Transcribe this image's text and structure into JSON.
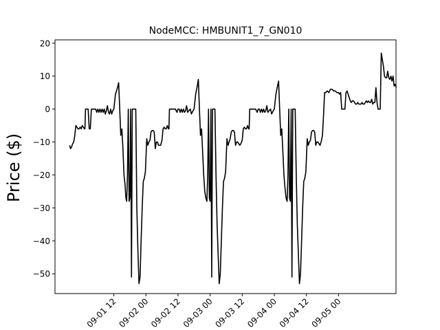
{
  "chart_data": {
    "type": "line",
    "title": "NodeMCC: HMBUNIT1_7_GN010",
    "xlabel": "",
    "ylabel": "Price ($)",
    "ylim": [
      -56,
      21
    ],
    "xlim_hours": [
      -10,
      117.5
    ],
    "grid": false,
    "line_color": "#000000",
    "y_ticks": [
      20,
      10,
      0,
      -10,
      -20,
      -30,
      -40,
      -50
    ],
    "x_ticks": [
      {
        "label": "09-01 12",
        "t": 12
      },
      {
        "label": "09-02 00",
        "t": 24
      },
      {
        "label": "09-02 12",
        "t": 36
      },
      {
        "label": "09-03 00",
        "t": 48
      },
      {
        "label": "09-03 12",
        "t": 60
      },
      {
        "label": "09-04 00",
        "t": 72
      },
      {
        "label": "09-04 12",
        "t": 84
      },
      {
        "label": "09-05 00",
        "t": 96
      }
    ],
    "series": [
      {
        "name": "",
        "points": [
          [
            -4.5,
            -11
          ],
          [
            -4.2,
            -12
          ],
          [
            -3.8,
            -11.5
          ],
          [
            -3.4,
            -10.5
          ],
          [
            -3,
            -10
          ],
          [
            -2.6,
            -8
          ],
          [
            -2.2,
            -5
          ],
          [
            -1.8,
            -5.5
          ],
          [
            -1.4,
            -6
          ],
          [
            -1,
            -6
          ],
          [
            -0.6,
            -5.5
          ],
          [
            -0.2,
            -6
          ],
          [
            0.2,
            -5
          ],
          [
            0.6,
            -5.5
          ],
          [
            1,
            -6
          ],
          [
            1.2,
            -6
          ],
          [
            1.4,
            0
          ],
          [
            2,
            0
          ],
          [
            2.4,
            0
          ],
          [
            2.8,
            -6
          ],
          [
            3.2,
            -6
          ],
          [
            3.6,
            0
          ],
          [
            4.4,
            0
          ],
          [
            5.2,
            0
          ],
          [
            5.6,
            -1
          ],
          [
            6,
            0
          ],
          [
            6.4,
            -1
          ],
          [
            6.8,
            0
          ],
          [
            7.2,
            -1
          ],
          [
            7.6,
            0
          ],
          [
            8,
            -1
          ],
          [
            8.4,
            0
          ],
          [
            8.8,
            -1.5
          ],
          [
            9.2,
            -0.5
          ],
          [
            9.6,
            1
          ],
          [
            10,
            -1
          ],
          [
            10.4,
            -1.5
          ],
          [
            10.8,
            0
          ],
          [
            11.2,
            -1.5
          ],
          [
            11.6,
            -0.5
          ],
          [
            12,
            0
          ],
          [
            12.6,
            4.5
          ],
          [
            13.2,
            6
          ],
          [
            13.8,
            8
          ],
          [
            14.2,
            0
          ],
          [
            14.6,
            -8
          ],
          [
            15,
            -6
          ],
          [
            15.4,
            -12
          ],
          [
            15.8,
            -20
          ],
          [
            16.2,
            -23
          ],
          [
            16.5,
            -27
          ],
          [
            16.8,
            -28
          ],
          [
            17.1,
            -20
          ],
          [
            17.4,
            0
          ],
          [
            17.7,
            -28
          ],
          [
            18,
            -27
          ],
          [
            18.3,
            0
          ],
          [
            18.6,
            -51
          ],
          [
            18.9,
            0
          ],
          [
            19.4,
            0
          ],
          [
            19.8,
            0
          ],
          [
            20.2,
            0
          ],
          [
            20.6,
            -30
          ],
          [
            21,
            -43
          ],
          [
            21.4,
            -53
          ],
          [
            21.8,
            -51
          ],
          [
            22.2,
            -40
          ],
          [
            22.6,
            -30
          ],
          [
            23,
            -22
          ],
          [
            23.4,
            -21
          ],
          [
            23.8,
            -19
          ],
          [
            24.3,
            -9
          ],
          [
            24.7,
            -11
          ],
          [
            25.1,
            -10
          ],
          [
            25.5,
            -9.5
          ],
          [
            25.9,
            -7
          ],
          [
            26.3,
            -6.5
          ],
          [
            26.7,
            -6.5
          ],
          [
            27.1,
            -7
          ],
          [
            27.5,
            -12
          ],
          [
            27.9,
            -10
          ],
          [
            28.3,
            -10
          ],
          [
            28.7,
            -11
          ],
          [
            29.1,
            -11
          ],
          [
            29.5,
            -11
          ],
          [
            30,
            -9.5
          ],
          [
            30.4,
            -6
          ],
          [
            30.8,
            -5.5
          ],
          [
            31.2,
            -6
          ],
          [
            31.6,
            -6
          ],
          [
            32,
            -5
          ],
          [
            32.4,
            -6
          ],
          [
            32.6,
            -6
          ],
          [
            32.8,
            0
          ],
          [
            33.5,
            0
          ],
          [
            34.2,
            0
          ],
          [
            35,
            0
          ],
          [
            35.6,
            -1
          ],
          [
            36,
            0
          ],
          [
            36.4,
            0
          ],
          [
            36.8,
            -1
          ],
          [
            37.2,
            0
          ],
          [
            37.6,
            -1
          ],
          [
            38,
            0
          ],
          [
            38.4,
            -1
          ],
          [
            38.8,
            -0.5
          ],
          [
            39.2,
            1
          ],
          [
            39.6,
            -1
          ],
          [
            40,
            -0.5
          ],
          [
            40.6,
            0
          ],
          [
            41,
            -1.5
          ],
          [
            41.6,
            -0.5
          ],
          [
            42,
            0
          ],
          [
            42.6,
            4.5
          ],
          [
            43.2,
            7
          ],
          [
            43.6,
            9
          ],
          [
            44,
            0
          ],
          [
            44.4,
            -8
          ],
          [
            44.8,
            -6
          ],
          [
            45.2,
            -13
          ],
          [
            45.6,
            -20
          ],
          [
            46,
            -25
          ],
          [
            46.4,
            -27
          ],
          [
            46.8,
            -28
          ],
          [
            47.1,
            -20
          ],
          [
            47.4,
            0
          ],
          [
            47.7,
            -27
          ],
          [
            48,
            -28
          ],
          [
            48.3,
            0
          ],
          [
            48.6,
            -51
          ],
          [
            48.9,
            0
          ],
          [
            49.4,
            0
          ],
          [
            49.8,
            0
          ],
          [
            50.2,
            -20
          ],
          [
            50.6,
            -35
          ],
          [
            51,
            -44
          ],
          [
            51.4,
            -53
          ],
          [
            51.8,
            -50
          ],
          [
            52.2,
            -40
          ],
          [
            52.6,
            -30
          ],
          [
            53,
            -22
          ],
          [
            53.4,
            -21
          ],
          [
            53.8,
            -19
          ],
          [
            54.3,
            -9
          ],
          [
            54.7,
            -11
          ],
          [
            55.1,
            -10
          ],
          [
            55.5,
            -9
          ],
          [
            55.9,
            -7
          ],
          [
            56.3,
            -6.5
          ],
          [
            56.7,
            -6.5
          ],
          [
            57.1,
            -7
          ],
          [
            57.5,
            -11
          ],
          [
            57.9,
            -10
          ],
          [
            58.3,
            -10
          ],
          [
            58.7,
            -10.5
          ],
          [
            59.1,
            -11
          ],
          [
            59.5,
            -10.5
          ],
          [
            60,
            -9.5
          ],
          [
            60.4,
            -6
          ],
          [
            60.8,
            -5.5
          ],
          [
            61.2,
            -6
          ],
          [
            61.6,
            -6
          ],
          [
            62,
            -5
          ],
          [
            62.4,
            -6
          ],
          [
            62.6,
            -6
          ],
          [
            62.8,
            0
          ],
          [
            63.5,
            0
          ],
          [
            64.2,
            0
          ],
          [
            65,
            0
          ],
          [
            65.6,
            -1
          ],
          [
            66,
            0
          ],
          [
            66.4,
            0
          ],
          [
            66.8,
            -1
          ],
          [
            67.2,
            0
          ],
          [
            67.6,
            -1
          ],
          [
            68,
            0
          ],
          [
            68.4,
            -1
          ],
          [
            68.8,
            -0.5
          ],
          [
            69.2,
            1
          ],
          [
            69.6,
            -1
          ],
          [
            70,
            -0.5
          ],
          [
            70.6,
            0
          ],
          [
            71,
            -1.5
          ],
          [
            71.6,
            -0.5
          ],
          [
            72,
            0
          ],
          [
            72.6,
            4.5
          ],
          [
            73.2,
            7
          ],
          [
            73.6,
            8.5
          ],
          [
            74,
            0
          ],
          [
            74.4,
            -8
          ],
          [
            74.8,
            -6
          ],
          [
            75.2,
            -13
          ],
          [
            75.6,
            -20
          ],
          [
            76,
            -24
          ],
          [
            76.4,
            -27
          ],
          [
            76.8,
            -28
          ],
          [
            77.1,
            -20
          ],
          [
            77.4,
            0
          ],
          [
            77.7,
            -27
          ],
          [
            78,
            -28
          ],
          [
            78.3,
            0
          ],
          [
            78.6,
            -51
          ],
          [
            78.9,
            0
          ],
          [
            79.4,
            0
          ],
          [
            79.8,
            0
          ],
          [
            80.2,
            -20
          ],
          [
            80.6,
            -35
          ],
          [
            81,
            -44
          ],
          [
            81.4,
            -53
          ],
          [
            81.8,
            -50
          ],
          [
            82.2,
            -40
          ],
          [
            82.6,
            -30
          ],
          [
            83,
            -22
          ],
          [
            83.4,
            -21
          ],
          [
            83.8,
            -19
          ],
          [
            84.3,
            -9
          ],
          [
            84.7,
            -11
          ],
          [
            85.1,
            -10
          ],
          [
            85.5,
            -9.5
          ],
          [
            85.9,
            -7
          ],
          [
            86.3,
            -6.5
          ],
          [
            86.7,
            -6.5
          ],
          [
            87.1,
            -7
          ],
          [
            87.5,
            -11
          ],
          [
            87.9,
            -10
          ],
          [
            88.3,
            -10
          ],
          [
            88.7,
            -10.5
          ],
          [
            89.1,
            -11
          ],
          [
            89.5,
            -10
          ],
          [
            90,
            -8
          ],
          [
            90.4,
            -2
          ],
          [
            90.8,
            5
          ],
          [
            91.2,
            5
          ],
          [
            91.8,
            5.5
          ],
          [
            92.4,
            5
          ],
          [
            93,
            6
          ],
          [
            93.6,
            6
          ],
          [
            94.2,
            5.5
          ],
          [
            94.8,
            5.5
          ],
          [
            95.4,
            5
          ],
          [
            96,
            5
          ],
          [
            96.4,
            4.5
          ],
          [
            96.8,
            5
          ],
          [
            97.2,
            0
          ],
          [
            97.6,
            0
          ],
          [
            98,
            0
          ],
          [
            98.4,
            0
          ],
          [
            98.8,
            5
          ],
          [
            99.2,
            5.5
          ],
          [
            99.6,
            4.5
          ],
          [
            100,
            3.5
          ],
          [
            100.4,
            2.5
          ],
          [
            100.8,
            2
          ],
          [
            101.2,
            2.5
          ],
          [
            101.6,
            2.5
          ],
          [
            102,
            2
          ],
          [
            102.4,
            1.5
          ],
          [
            102.8,
            1.5
          ],
          [
            103.2,
            2
          ],
          [
            103.6,
            1.5
          ],
          [
            104,
            1.5
          ],
          [
            104.4,
            1.5
          ],
          [
            104.8,
            2
          ],
          [
            105.2,
            1.5
          ],
          [
            105.6,
            1.5
          ],
          [
            106,
            2
          ],
          [
            106.4,
            2.5
          ],
          [
            106.8,
            2
          ],
          [
            107.2,
            2.5
          ],
          [
            107.6,
            2
          ],
          [
            108,
            2
          ],
          [
            108.4,
            3
          ],
          [
            108.8,
            1.5
          ],
          [
            109.2,
            2
          ],
          [
            109.6,
            2
          ],
          [
            110,
            6.5
          ],
          [
            110.4,
            2
          ],
          [
            110.8,
            0
          ],
          [
            111.2,
            0
          ],
          [
            111.6,
            0
          ],
          [
            112,
            17
          ],
          [
            112.4,
            15
          ],
          [
            112.8,
            13
          ],
          [
            113.2,
            10
          ],
          [
            113.6,
            9.5
          ],
          [
            114,
            9.5
          ],
          [
            114.4,
            11.5
          ],
          [
            114.8,
            9.5
          ],
          [
            115.2,
            9
          ],
          [
            115.6,
            10
          ],
          [
            116,
            8.5
          ],
          [
            116.4,
            10
          ],
          [
            116.8,
            7
          ],
          [
            117.2,
            7.5
          ],
          [
            117.6,
            6.5
          ]
        ]
      }
    ]
  }
}
